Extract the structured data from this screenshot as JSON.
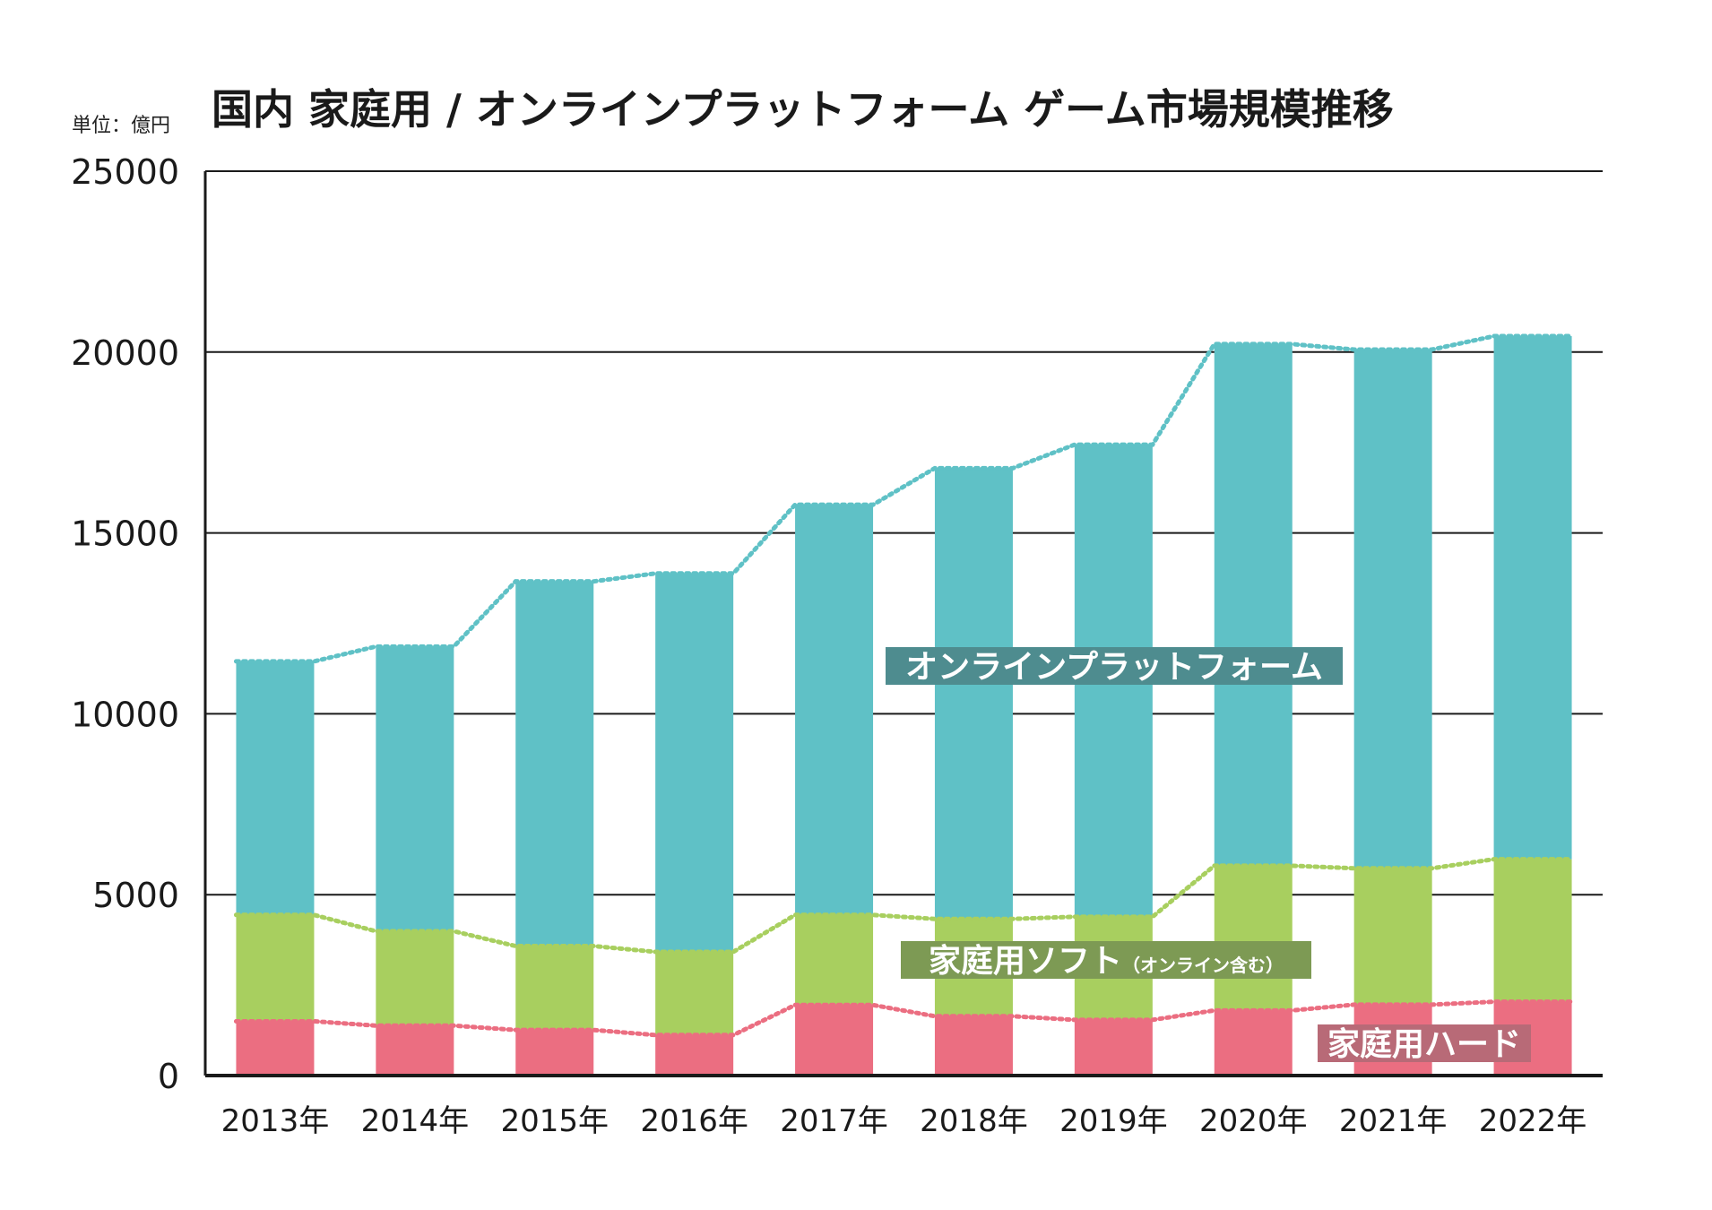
{
  "chart_data": {
    "type": "bar",
    "stacked": true,
    "title": "国内 家庭用 / オンラインプラットフォーム ゲーム市場規模推移",
    "unit_label": "単位：億円",
    "categories": [
      "2013年",
      "2014年",
      "2015年",
      "2016年",
      "2017年",
      "2018年",
      "2019年",
      "2020年",
      "2021年",
      "2022年"
    ],
    "ylim": [
      0,
      25000
    ],
    "yticks": [
      "0",
      "5000",
      "10000",
      "15000",
      "20000",
      "25000"
    ],
    "grid": true,
    "series": [
      {
        "name": "家庭用ハード",
        "color": "#eb6e81",
        "label_color": "#b86a77",
        "values": [
          1500,
          1380,
          1260,
          1120,
          1950,
          1640,
          1540,
          1800,
          1960,
          2040
        ]
      },
      {
        "name": "家庭用ソフト",
        "name_note": "（オンライン含む）",
        "color": "#a8cf5f",
        "label_color": "#7d9a54",
        "values": [
          2940,
          2610,
          2320,
          2300,
          2490,
          2690,
          2850,
          4000,
          3770,
          3940
        ]
      },
      {
        "name": "オンラインプラットフォーム",
        "color": "#5fc1c6",
        "label_color": "#4e8c8f",
        "values": [
          7010,
          7870,
          10080,
          10460,
          11340,
          12460,
          13050,
          14420,
          14340,
          14460
        ]
      }
    ]
  }
}
